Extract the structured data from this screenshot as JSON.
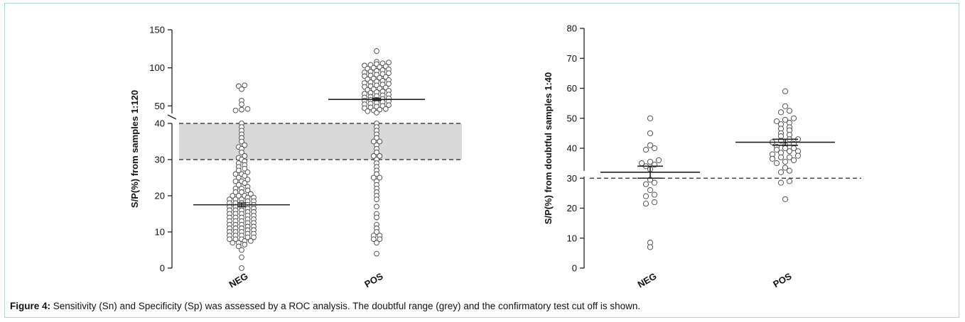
{
  "caption": {
    "label": "Figure 4:",
    "text": " Sensitivity (Sn) and Specificity (Sp) was assessed by a ROC analysis. The doubtful range (grey) and the confirmatory test cut off is shown."
  },
  "colors": {
    "shade": "#d9d9d9",
    "marker_stroke": "#444444",
    "axis": "#222222"
  },
  "chart_data": [
    {
      "type": "scatter",
      "ylabel": "S/P(%) from samples 1:120",
      "categories": [
        "NEG",
        "POS"
      ],
      "y_axis_break": true,
      "lower_segment": {
        "ylim": [
          0,
          40
        ],
        "ticks": [
          0,
          10,
          20,
          30,
          40
        ]
      },
      "upper_segment": {
        "ylim": [
          40,
          150
        ],
        "ticks": [
          50,
          100,
          150
        ]
      },
      "doubtful_range": [
        30,
        40
      ],
      "reference_lines": [
        30,
        40
      ],
      "series": [
        {
          "category": "NEG",
          "mean": 17.5,
          "error": 0.5,
          "values": [
            0,
            3,
            5,
            6,
            6.5,
            7,
            7,
            7.5,
            7.5,
            8,
            8,
            8,
            8.5,
            8.5,
            9,
            9,
            9,
            9.5,
            9.5,
            10,
            10,
            10,
            10.5,
            10.5,
            11,
            11,
            11,
            11.5,
            11.5,
            12,
            12,
            12,
            12.5,
            12.5,
            13,
            13,
            13,
            13.5,
            13.5,
            14,
            14,
            14,
            14.5,
            14.5,
            15,
            15,
            15,
            15.5,
            15.5,
            16,
            16,
            16,
            16.5,
            16.5,
            17,
            17,
            17,
            17.5,
            17.5,
            18,
            18,
            18,
            18.5,
            18.5,
            19,
            19,
            19,
            19.5,
            19.5,
            20,
            20,
            20,
            20.5,
            21,
            21,
            21.5,
            22,
            22,
            22.5,
            23,
            23.5,
            24,
            24,
            24.5,
            25,
            25.5,
            26,
            26,
            26.5,
            27,
            27.5,
            28,
            28.5,
            29,
            29.5,
            30,
            30.5,
            31,
            32,
            33,
            33.5,
            34,
            35,
            36,
            37,
            38,
            39,
            40,
            44,
            45,
            46,
            52,
            57,
            72,
            76,
            77
          ]
        },
        {
          "category": "POS",
          "mean": 58.5,
          "error": 1.5,
          "values": [
            4,
            7,
            8,
            8,
            9,
            9,
            10,
            11,
            12,
            14,
            15,
            17,
            19,
            20,
            21,
            22,
            23,
            24,
            25,
            25,
            26,
            27,
            28,
            29,
            30,
            31,
            31,
            32,
            33,
            34,
            35,
            35,
            36,
            37,
            38,
            39,
            40,
            41,
            43,
            44,
            45,
            46,
            47,
            48,
            49,
            50,
            51,
            52,
            53,
            54,
            55,
            56,
            57,
            58,
            58,
            59,
            60,
            61,
            62,
            63,
            64,
            65,
            66,
            67,
            68,
            69,
            70,
            71,
            72,
            73,
            74,
            75,
            76,
            77,
            78,
            79,
            80,
            81,
            82,
            83,
            84,
            85,
            86,
            87,
            88,
            89,
            90,
            91,
            92,
            93,
            94,
            95,
            96,
            97,
            98,
            99,
            100,
            101,
            102,
            103,
            104,
            105,
            106,
            107,
            108,
            122
          ]
        }
      ]
    },
    {
      "type": "scatter",
      "ylabel": "S/P(%) from doubtful samples 1:40",
      "categories": [
        "NEG",
        "POS"
      ],
      "ylim": [
        0,
        80
      ],
      "ticks": [
        0,
        10,
        20,
        30,
        40,
        50,
        60,
        70,
        80
      ],
      "reference_lines": [
        30
      ],
      "series": [
        {
          "category": "NEG",
          "mean": 32,
          "error": 2,
          "values": [
            7,
            8.5,
            21.5,
            22,
            24,
            24.5,
            26,
            28,
            28.5,
            29.5,
            33,
            34,
            34.5,
            35,
            35.5,
            36,
            39.5,
            40,
            41,
            45,
            50
          ]
        },
        {
          "category": "POS",
          "mean": 42,
          "error": 1,
          "values": [
            23,
            28.5,
            29,
            32,
            32.5,
            33.5,
            35,
            35.5,
            36,
            36.5,
            37,
            37,
            37.5,
            38,
            38.5,
            39,
            39,
            39.5,
            40,
            40,
            40.5,
            41,
            41.5,
            42,
            42.5,
            43,
            43,
            44,
            44.5,
            45,
            46,
            46.5,
            47,
            48,
            48.5,
            49,
            49.5,
            50,
            52,
            52.5,
            54,
            59
          ]
        }
      ]
    }
  ]
}
